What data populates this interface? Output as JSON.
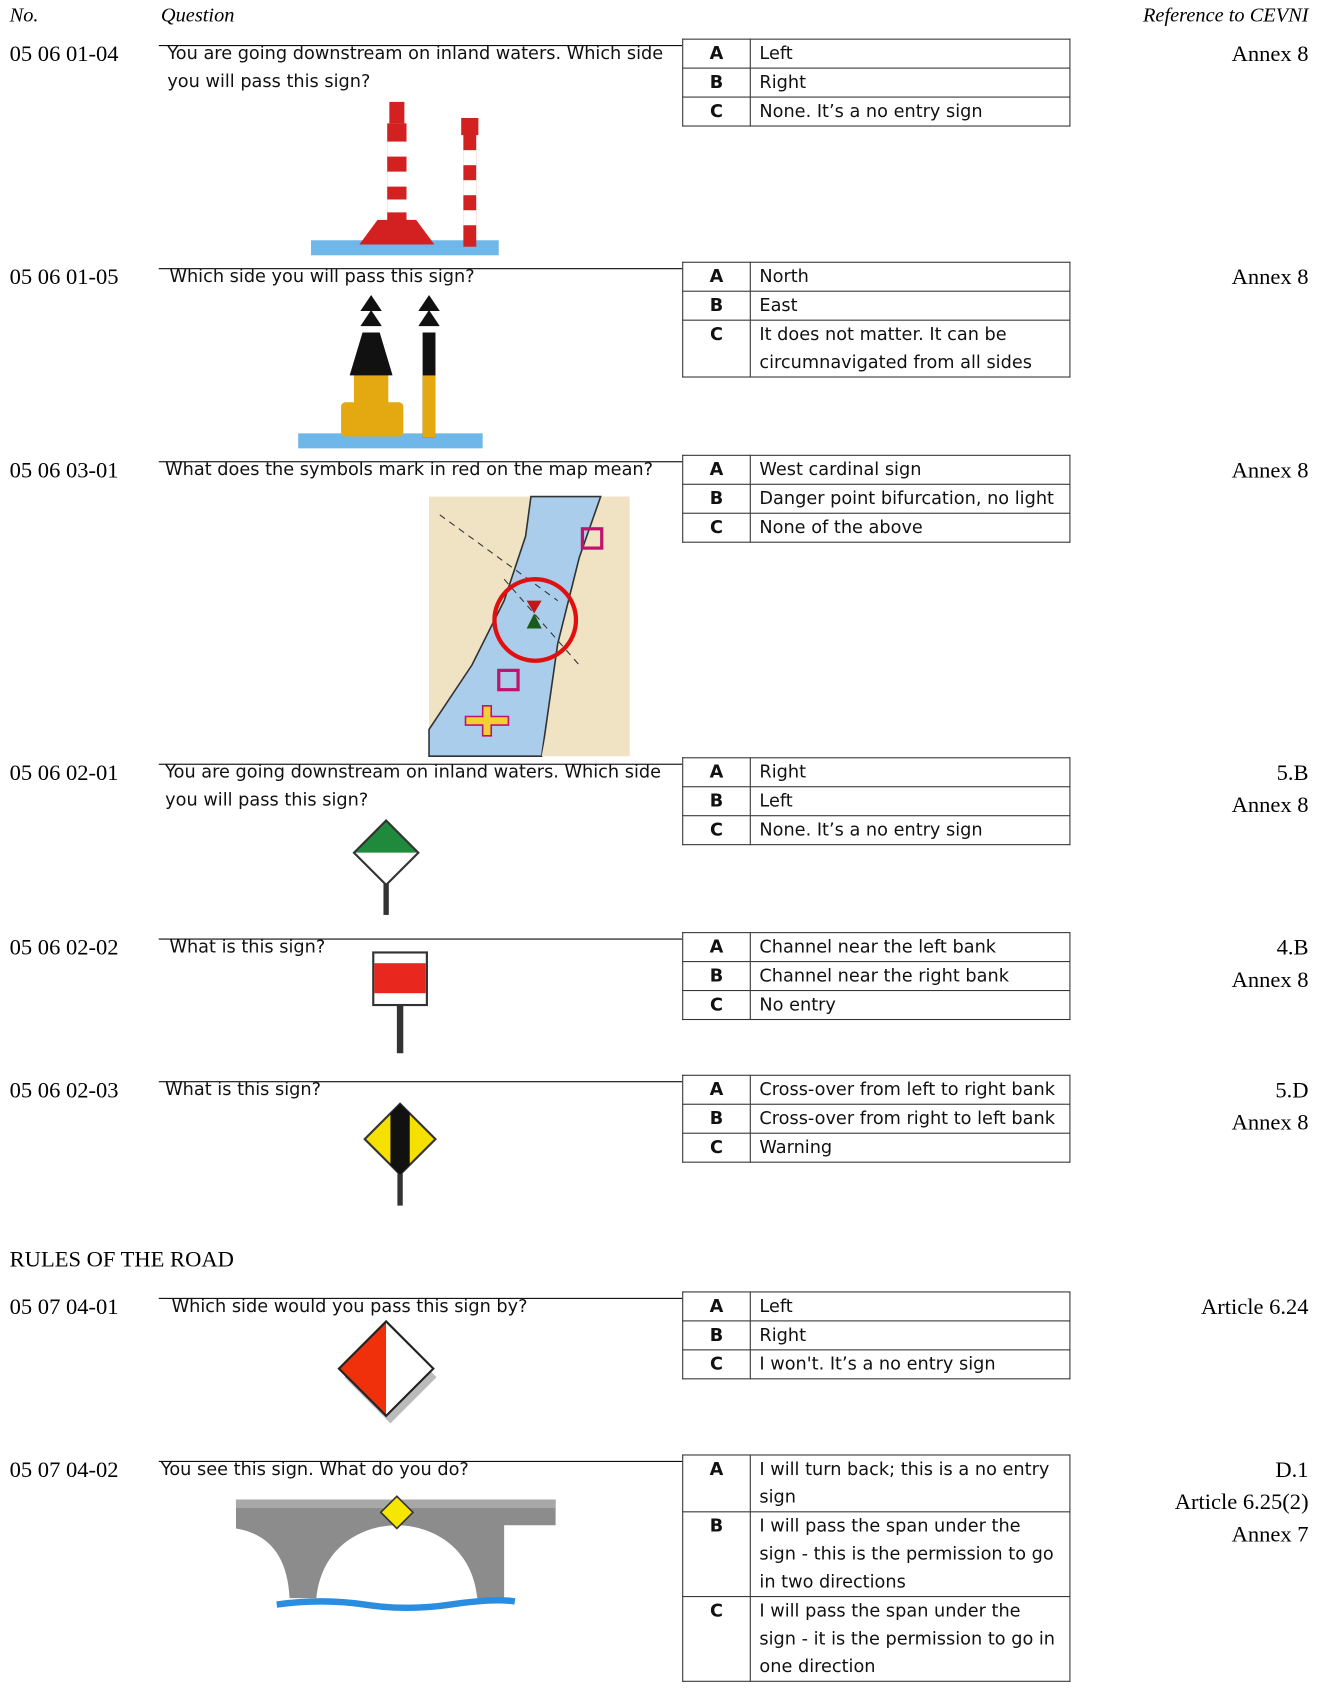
{
  "header": {
    "number": "No.",
    "question": "Question",
    "reference": "Reference to CEVNI"
  },
  "sections": [
    {
      "questions": [
        {
          "number": "05 06 01-04",
          "text": "You are going downstream on inland waters. Which side you will pass this sign?",
          "options": [
            {
              "letter": "A",
              "text": "Left"
            },
            {
              "letter": "B",
              "text": "Right"
            },
            {
              "letter": "C",
              "text": "None. It’s a no entry sign"
            }
          ],
          "references": [
            "Annex 8"
          ]
        },
        {
          "number": "05 06 01-05",
          "text": "Which side you will pass this sign?",
          "options": [
            {
              "letter": "A",
              "text": "North"
            },
            {
              "letter": "B",
              "text": "East"
            },
            {
              "letter": "C",
              "text": "It does not matter. It can be circumnavigated from all sides"
            }
          ],
          "references": [
            "Annex 8"
          ]
        },
        {
          "number": "05 06 03-01",
          "text": "What does the symbols mark in red on the map mean?",
          "options": [
            {
              "letter": "A",
              "text": "West cardinal sign"
            },
            {
              "letter": "B",
              "text": "Danger point bifurcation, no light"
            },
            {
              "letter": "C",
              "text": "None of the above"
            }
          ],
          "references": [
            "Annex 8"
          ]
        },
        {
          "number": "05 06 02-01",
          "text": "You are going downstream on inland waters. Which side you will pass this sign?",
          "options": [
            {
              "letter": "A",
              "text": "Right"
            },
            {
              "letter": "B",
              "text": "Left"
            },
            {
              "letter": "C",
              "text": "None. It’s a no entry sign"
            }
          ],
          "references": [
            "5.B",
            "Annex 8"
          ]
        },
        {
          "number": "05 06 02-02",
          "text": "What is this sign?",
          "options": [
            {
              "letter": "A",
              "text": "Channel near the left bank"
            },
            {
              "letter": "B",
              "text": "Channel near the right bank"
            },
            {
              "letter": "C",
              "text": "No entry"
            }
          ],
          "references": [
            "4.B",
            "Annex 8"
          ]
        },
        {
          "number": "05 06 02-03",
          "text": "What is this sign?",
          "options": [
            {
              "letter": "A",
              "text": "Cross-over from left to right bank"
            },
            {
              "letter": "B",
              "text": "Cross-over from right to left bank"
            },
            {
              "letter": "C",
              "text": "Warning"
            }
          ],
          "references": [
            "5.D",
            "Annex 8"
          ]
        }
      ]
    },
    {
      "title": "RULES OF THE ROAD",
      "questions": [
        {
          "number": "05 07 04-01",
          "text": "Which side would you pass this sign by?",
          "options": [
            {
              "letter": "A",
              "text": "Left"
            },
            {
              "letter": "B",
              "text": "Right"
            },
            {
              "letter": "C",
              "text": "I won't. It’s a no entry sign"
            }
          ],
          "references": [
            "Article 6.24"
          ]
        },
        {
          "number": "05 07 04-02",
          "text": "You see this sign. What do you do?",
          "options": [
            {
              "letter": "A",
              "text": "I will turn back; this is a no entry sign"
            },
            {
              "letter": "B",
              "text": "I will pass the span under the sign - this is the permission to go in two directions"
            },
            {
              "letter": "C",
              "text": "I will pass the span under the sign - it is the permission to go in one direction"
            }
          ],
          "references": [
            "D.1",
            "Article 6.25(2)",
            "Annex 7"
          ]
        }
      ]
    }
  ]
}
